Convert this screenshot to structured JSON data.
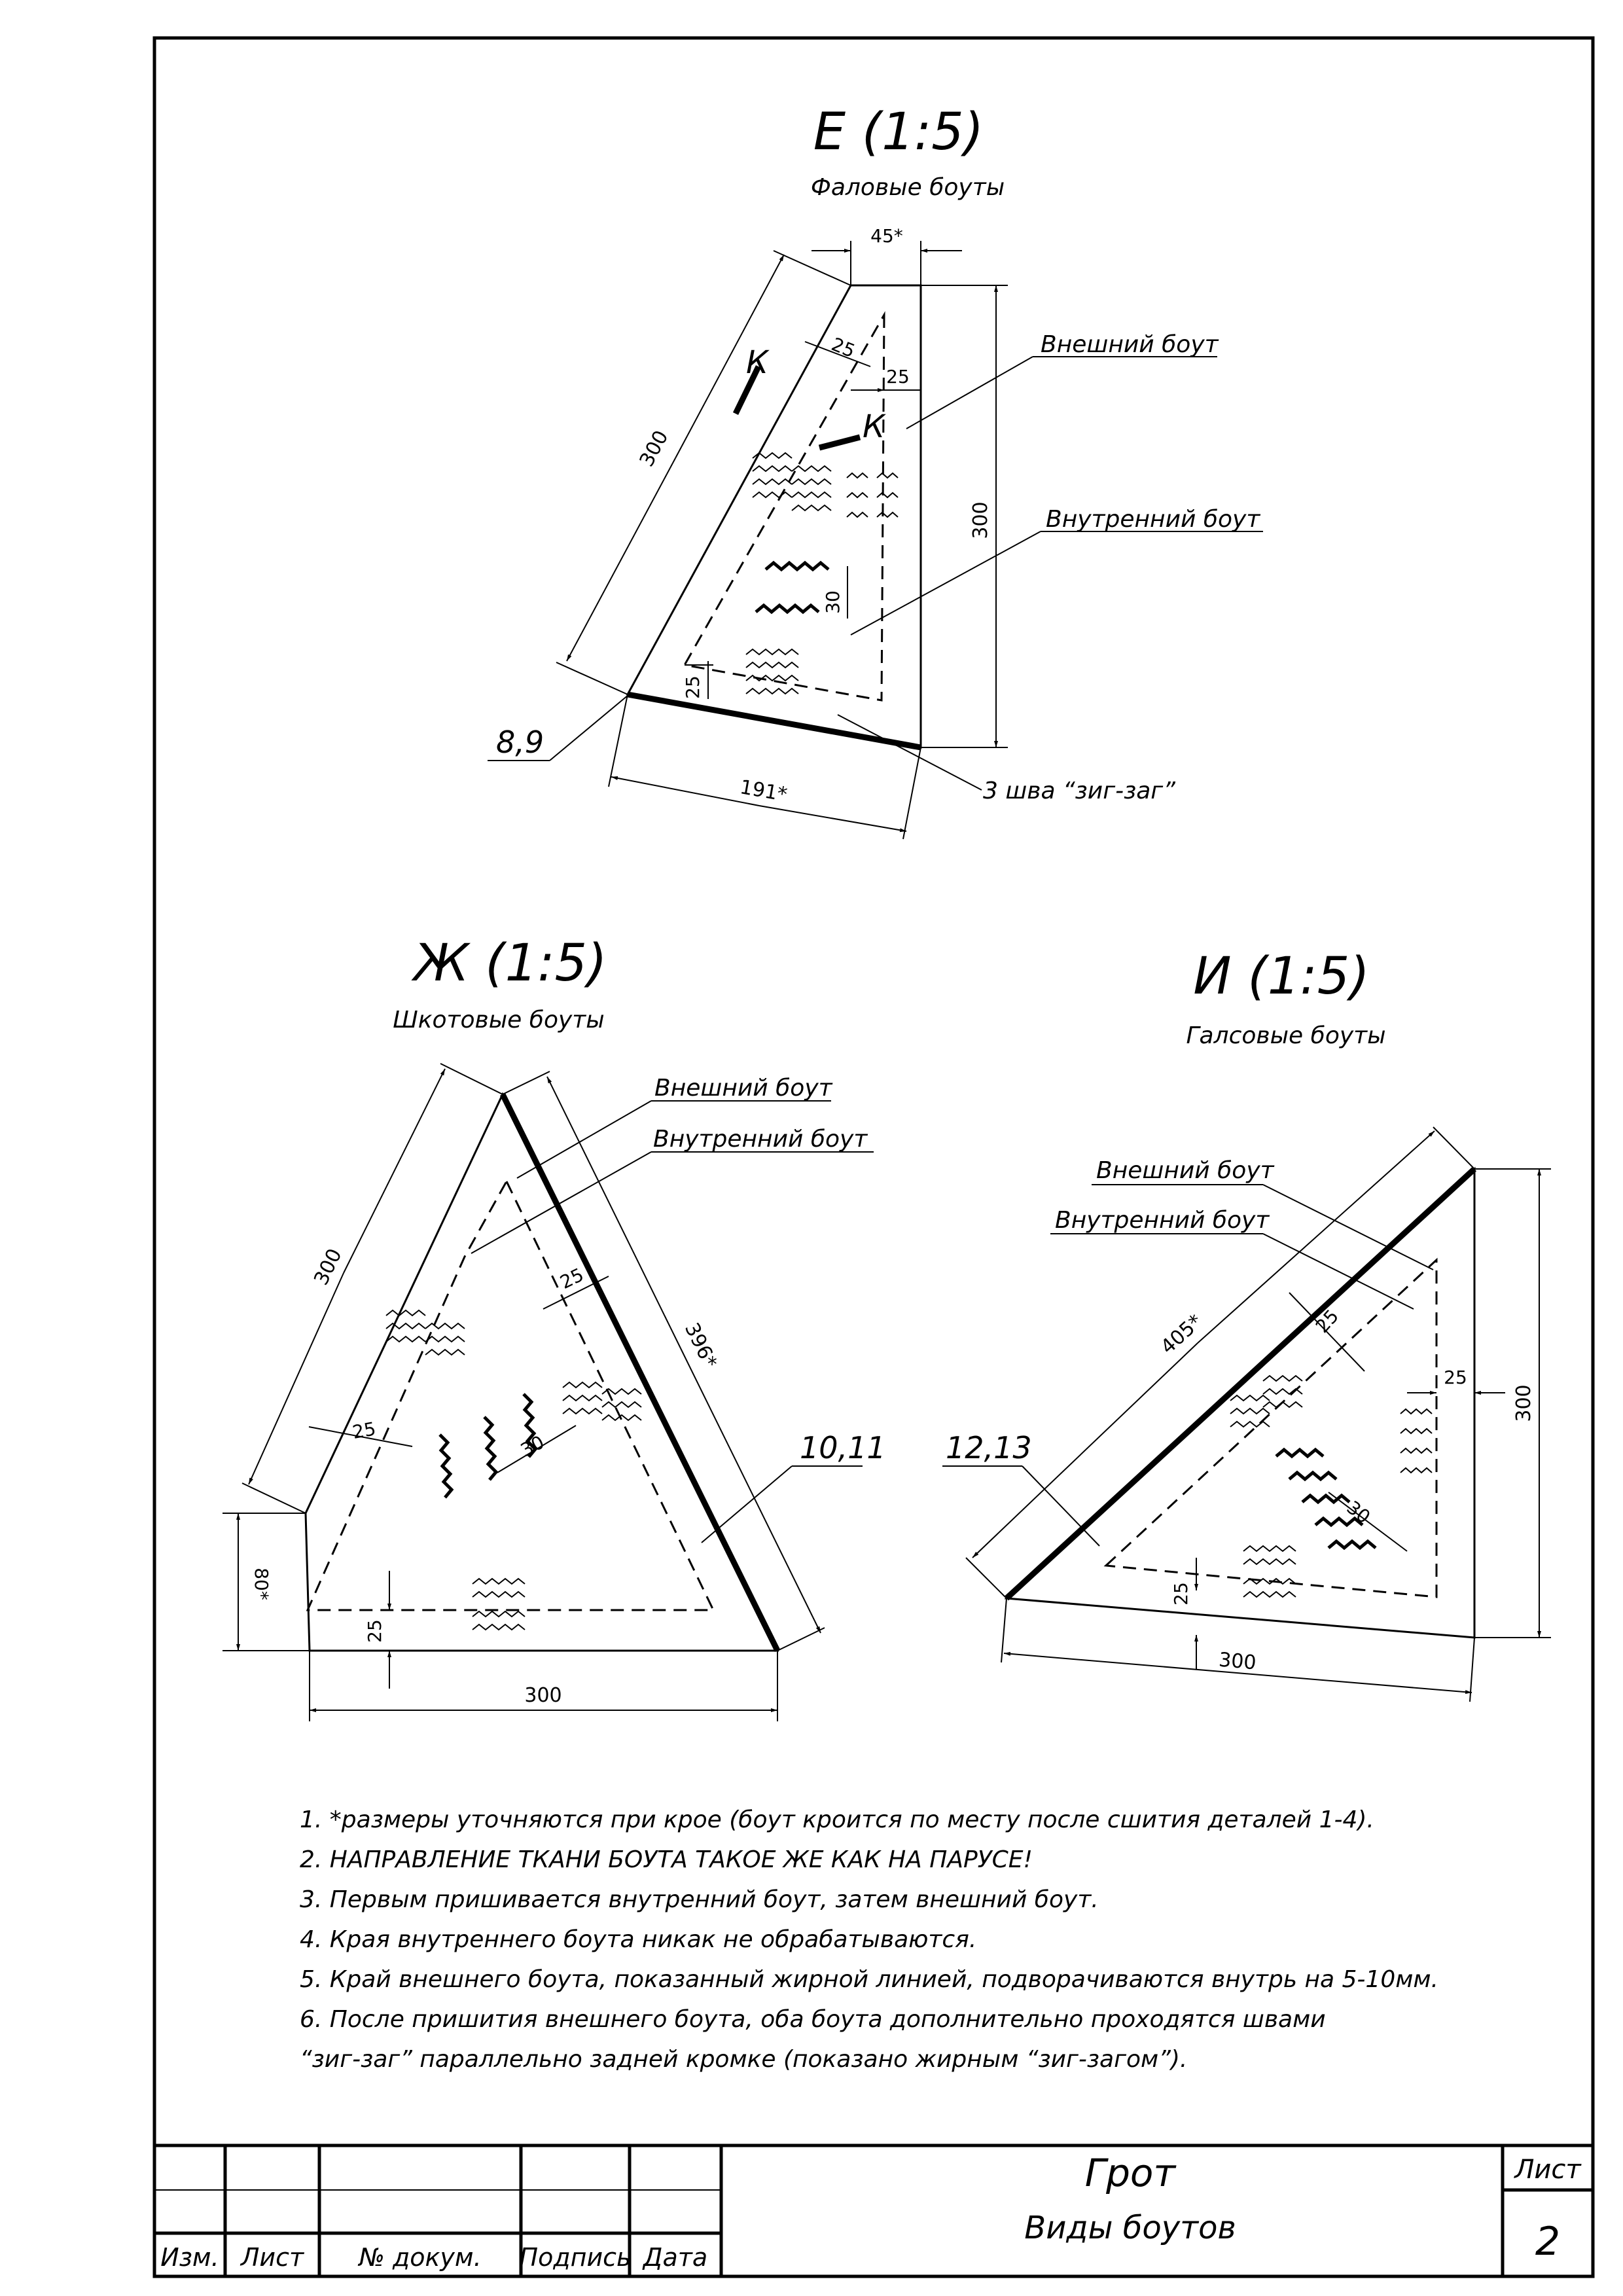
{
  "views": {
    "e": {
      "title": "Е (1:5)",
      "subtitle": "Фаловые боуты",
      "dims": [
        "45*",
        "25",
        "25",
        "300",
        "300",
        "30",
        "25",
        "191*"
      ],
      "section_marks": [
        "К",
        "К"
      ],
      "labels": {
        "outer": "Внешний боут",
        "inner": "Внутренний боут",
        "seams": "3 шва “зиг-заг”",
        "ref": "8,9"
      }
    },
    "zh": {
      "title": "Ж (1:5)",
      "subtitle": "Шкотовые боуты",
      "dims": [
        "300",
        "396*",
        "25",
        "25",
        "30",
        "80*",
        "25",
        "300"
      ],
      "labels": {
        "outer": "Внешний боут",
        "inner": "Внутренний боут",
        "ref": "10,11"
      }
    },
    "i": {
      "title": "И (1:5)",
      "subtitle": "Галсовые боуты",
      "dims": [
        "405*",
        "25",
        "25",
        "300",
        "30",
        "25",
        "300"
      ],
      "labels": {
        "outer": "Внешний боут",
        "inner": "Внутренний боут",
        "ref": "12,13"
      }
    }
  },
  "notes": [
    "1. *размеры уточняются при крое (боут кроится по месту после сшития деталей 1-4).",
    "2. НАПРАВЛЕНИЕ ТКАНИ БОУТА ТАКОЕ ЖЕ КАК НА ПАРУСЕ!",
    "3. Первым пришивается внутренний боут, затем внешний боут.",
    "4. Края внутреннего боута никак не обрабатываются.",
    "5. Край внешнего боута, показанный жирной линией, подворачиваются внутрь на 5-10мм.",
    "6. После пришития внешнего боута, оба боута дополнительно проходятся швами",
    "“зиг-заг” параллельно задней кромке (показано жирным “зиг-загом”)."
  ],
  "title_block": {
    "drawing_name": "Грот",
    "sheet_title": "Виды боутов",
    "headers": [
      "Изм.",
      "Лист",
      "№ докум.",
      "Подпись",
      "Дата"
    ],
    "sheet_label": "Лист",
    "sheet_number": "2"
  }
}
